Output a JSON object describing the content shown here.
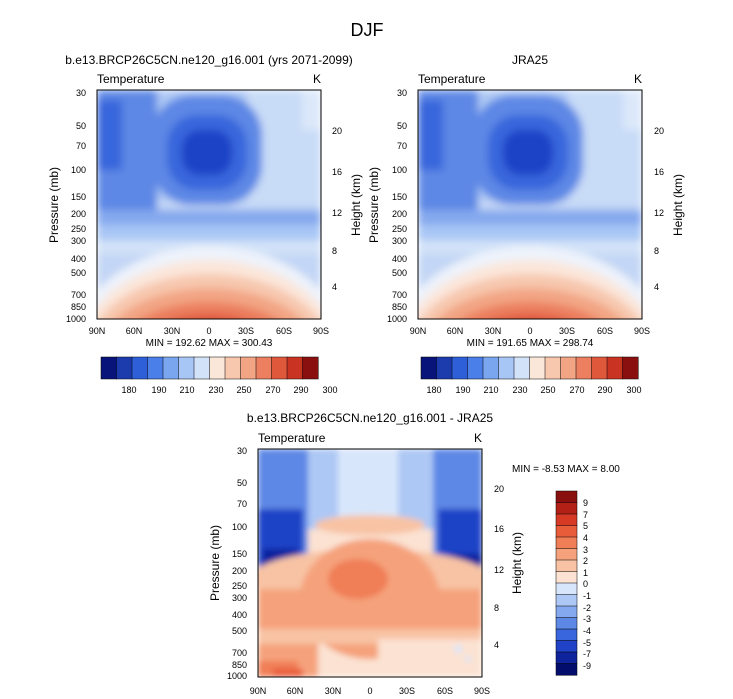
{
  "figure": {
    "title": "DJF",
    "bottom_title": "b.e13.BRCP26C5CN.ne120_g16.001 - JRA25"
  },
  "panels": [
    {
      "title": "b.e13.BRCP26C5CN.ne120_g16.001 (yrs 2071-2099)",
      "left_label": "Temperature",
      "right_label": "K",
      "min_max": "MIN = 192.62  MAX = 300.43"
    },
    {
      "title": "JRA25",
      "left_label": "Temperature",
      "right_label": "K",
      "min_max": "MIN = 191.65  MAX = 298.74"
    },
    {
      "title": "",
      "left_label": "Temperature",
      "right_label": "K",
      "min_max": "MIN = -8.53  MAX =  8.00"
    }
  ],
  "axes": {
    "ylabel": "Pressure (mb)",
    "ylabel_right": "Height (km)",
    "x_ticks": [
      "90N",
      "60N",
      "30N",
      "0",
      "30S",
      "60S",
      "90S"
    ],
    "y_ticks": [
      "30",
      "50",
      "70",
      "100",
      "150",
      "200",
      "250",
      "300",
      "400",
      "500",
      "700",
      "850",
      "1000"
    ],
    "height_ticks": [
      "20",
      "16",
      "12",
      "8",
      "4"
    ]
  },
  "colorbars": {
    "absolute_labels": [
      "180",
      "190",
      "210",
      "230",
      "250",
      "270",
      "290",
      "300"
    ],
    "absolute_colors": [
      "#08147a",
      "#1c3cae",
      "#2e5ed8",
      "#4a7ee8",
      "#7aa6f0",
      "#a8c6f5",
      "#d2e2f8",
      "#fbe6da",
      "#f7c7ae",
      "#f2a584",
      "#eb7f5f",
      "#e0583c",
      "#c93322",
      "#8a1010"
    ],
    "difference_labels": [
      "9",
      "7",
      "5",
      "4",
      "3",
      "2",
      "1",
      "0",
      "-1",
      "-2",
      "-3",
      "-4",
      "-5",
      "-7",
      "-9"
    ],
    "difference_colors": [
      "#8a1010",
      "#b32016",
      "#d63a24",
      "#e95c3a",
      "#f07e56",
      "#f5a27c",
      "#f8c3a4",
      "#fbe2d2",
      "#d8e6fb",
      "#adc8f4",
      "#85a9ee",
      "#5d88e5",
      "#3966dc",
      "#1f42c6",
      "#0e239c",
      "#030d6c"
    ]
  },
  "chart_data": [
    {
      "type": "heatmap",
      "title": "b.e13.BRCP26C5CN.ne120_g16.001 (yrs 2071-2099)",
      "variable": "Temperature",
      "units": "K",
      "x_categories": [
        "90N",
        "60N",
        "30N",
        "0",
        "30S",
        "60S",
        "90S"
      ],
      "y_pressure_mb": [
        30,
        50,
        70,
        100,
        150,
        200,
        250,
        300,
        400,
        500,
        700,
        850,
        1000
      ],
      "y_height_km": [
        20,
        16,
        12,
        8,
        4
      ],
      "z_min": 192.62,
      "z_max": 300.43,
      "colorbar_levels": [
        180,
        190,
        210,
        230,
        250,
        270,
        290,
        300
      ]
    },
    {
      "type": "heatmap",
      "title": "JRA25",
      "variable": "Temperature",
      "units": "K",
      "x_categories": [
        "90N",
        "60N",
        "30N",
        "0",
        "30S",
        "60S",
        "90S"
      ],
      "y_pressure_mb": [
        30,
        50,
        70,
        100,
        150,
        200,
        250,
        300,
        400,
        500,
        700,
        850,
        1000
      ],
      "y_height_km": [
        20,
        16,
        12,
        8,
        4
      ],
      "z_min": 191.65,
      "z_max": 298.74,
      "colorbar_levels": [
        180,
        190,
        210,
        230,
        250,
        270,
        290,
        300
      ]
    },
    {
      "type": "heatmap",
      "title": "b.e13.BRCP26C5CN.ne120_g16.001 - JRA25",
      "variable": "Temperature",
      "units": "K",
      "x_categories": [
        "90N",
        "60N",
        "30N",
        "0",
        "30S",
        "60S",
        "90S"
      ],
      "y_pressure_mb": [
        30,
        50,
        70,
        100,
        150,
        200,
        250,
        300,
        400,
        500,
        700,
        850,
        1000
      ],
      "y_height_km": [
        20,
        16,
        12,
        8,
        4
      ],
      "z_min": -8.53,
      "z_max": 8.0,
      "colorbar_levels": [
        9,
        7,
        5,
        4,
        3,
        2,
        1,
        0,
        -1,
        -2,
        -3,
        -4,
        -5,
        -7,
        -9
      ]
    }
  ]
}
